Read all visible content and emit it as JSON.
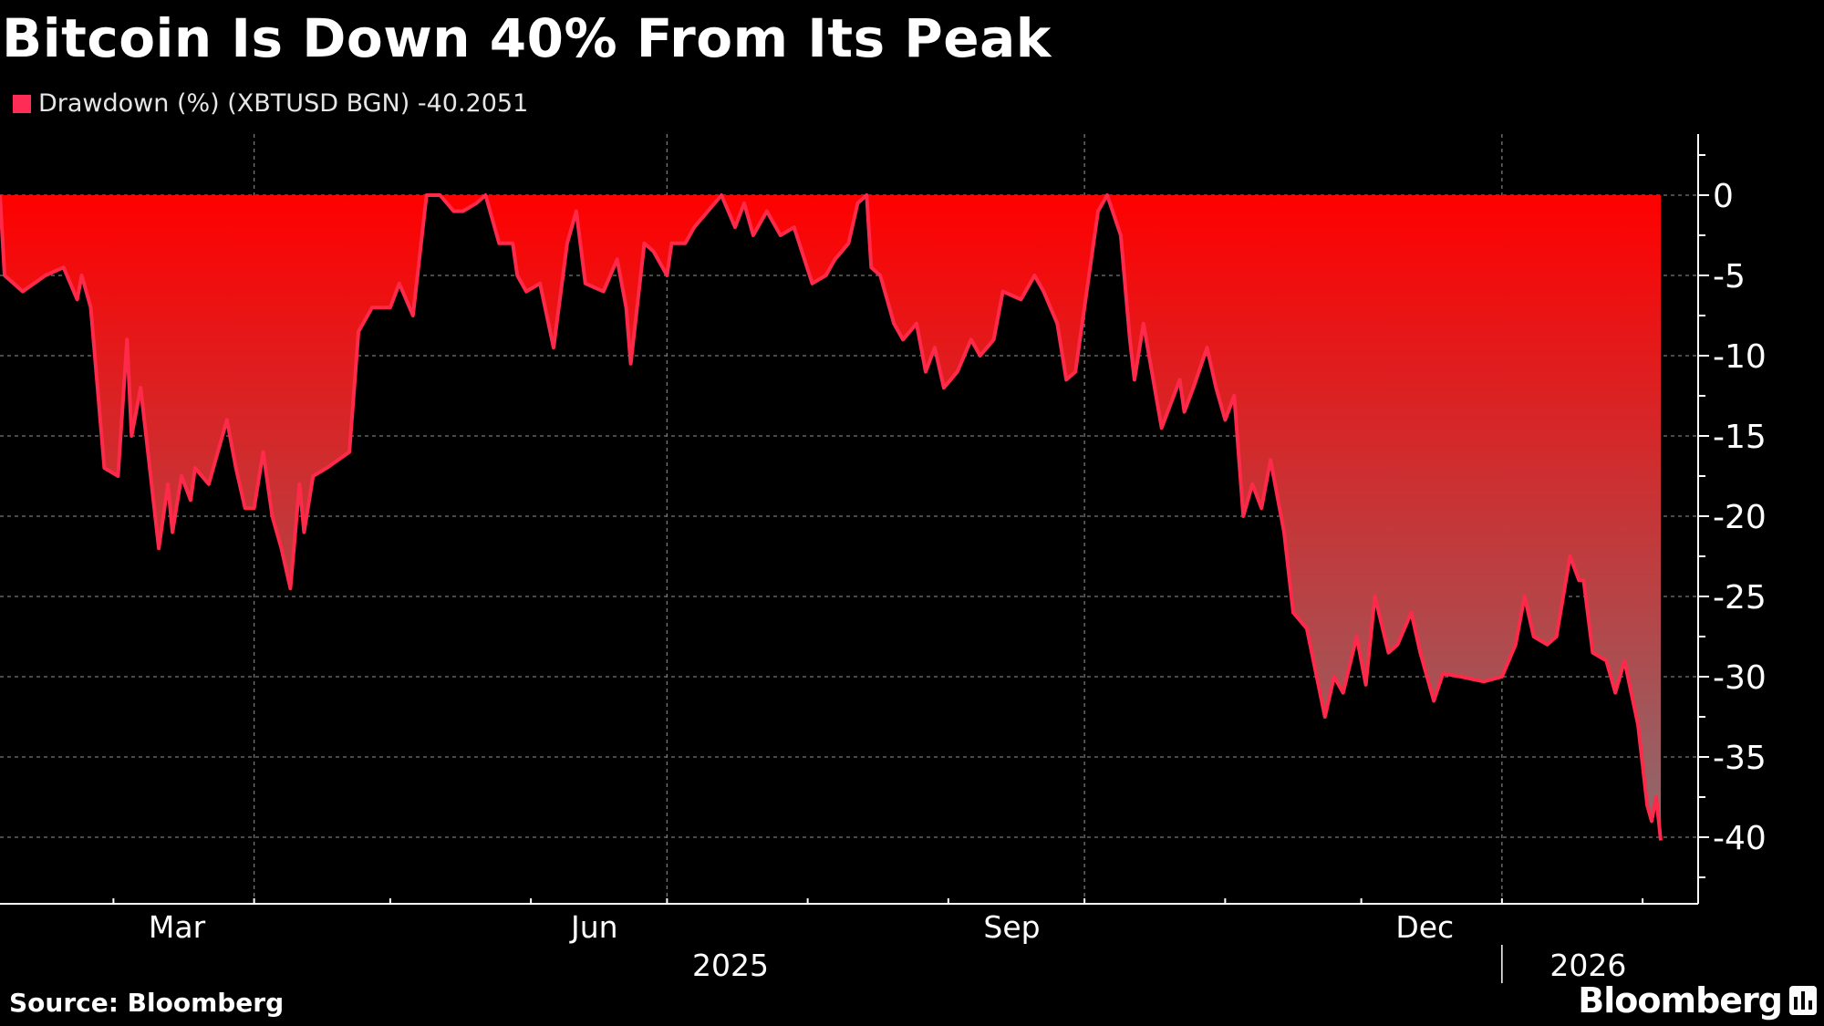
{
  "chart_data": {
    "type": "area",
    "title": "Bitcoin Is Down 40% From Its Peak",
    "legend": {
      "swatch_color": "#ff2d55",
      "label": "Drawdown (%) (XBTUSD BGN) -40.2051",
      "placement": "top-left"
    },
    "series": [
      {
        "name": "Drawdown (%) (XBTUSD BGN)",
        "line_color": "#ff2a4a",
        "fill_top_color": "#ff0000",
        "fill_bottom_color": "#8c6b6f",
        "points": [
          [
            "2025-02-04",
            0
          ],
          [
            "2025-02-05",
            -5
          ],
          [
            "2025-02-09",
            -6
          ],
          [
            "2025-02-14",
            -5
          ],
          [
            "2025-02-18",
            -4.5
          ],
          [
            "2025-02-21",
            -6.5
          ],
          [
            "2025-02-22",
            -5
          ],
          [
            "2025-02-24",
            -7
          ],
          [
            "2025-02-27",
            -17
          ],
          [
            "2025-03-02",
            -17.5
          ],
          [
            "2025-03-04",
            -9
          ],
          [
            "2025-03-05",
            -15
          ],
          [
            "2025-03-07",
            -12
          ],
          [
            "2025-03-09",
            -17
          ],
          [
            "2025-03-11",
            -22
          ],
          [
            "2025-03-13",
            -18
          ],
          [
            "2025-03-14",
            -21
          ],
          [
            "2025-03-16",
            -17.5
          ],
          [
            "2025-03-18",
            -19
          ],
          [
            "2025-03-19",
            -17
          ],
          [
            "2025-03-22",
            -18
          ],
          [
            "2025-03-26",
            -14
          ],
          [
            "2025-03-28",
            -17
          ],
          [
            "2025-03-30",
            -19.5
          ],
          [
            "2025-04-01",
            -19.5
          ],
          [
            "2025-04-03",
            -16
          ],
          [
            "2025-04-05",
            -20
          ],
          [
            "2025-04-07",
            -22
          ],
          [
            "2025-04-09",
            -24.5
          ],
          [
            "2025-04-11",
            -18
          ],
          [
            "2025-04-12",
            -21
          ],
          [
            "2025-04-14",
            -17.5
          ],
          [
            "2025-04-17",
            -17
          ],
          [
            "2025-04-22",
            -16
          ],
          [
            "2025-04-24",
            -8.5
          ],
          [
            "2025-04-27",
            -7
          ],
          [
            "2025-05-01",
            -7
          ],
          [
            "2025-05-03",
            -5.5
          ],
          [
            "2025-05-06",
            -7.5
          ],
          [
            "2025-05-09",
            0
          ],
          [
            "2025-05-12",
            0
          ],
          [
            "2025-05-15",
            -1
          ],
          [
            "2025-05-17",
            -1
          ],
          [
            "2025-05-20",
            -0.5
          ],
          [
            "2025-05-22",
            0
          ],
          [
            "2025-05-25",
            -3
          ],
          [
            "2025-05-28",
            -3
          ],
          [
            "2025-05-29",
            -5
          ],
          [
            "2025-05-31",
            -6
          ],
          [
            "2025-06-03",
            -5.5
          ],
          [
            "2025-06-06",
            -9.5
          ],
          [
            "2025-06-09",
            -3
          ],
          [
            "2025-06-11",
            -1
          ],
          [
            "2025-06-13",
            -5.5
          ],
          [
            "2025-06-17",
            -6
          ],
          [
            "2025-06-20",
            -4
          ],
          [
            "2025-06-22",
            -7
          ],
          [
            "2025-06-23",
            -10.5
          ],
          [
            "2025-06-26",
            -3
          ],
          [
            "2025-06-28",
            -3.5
          ],
          [
            "2025-07-01",
            -5
          ],
          [
            "2025-07-02",
            -3
          ],
          [
            "2025-07-05",
            -3
          ],
          [
            "2025-07-07",
            -2
          ],
          [
            "2025-07-10",
            -1
          ],
          [
            "2025-07-13",
            0
          ],
          [
            "2025-07-16",
            -2
          ],
          [
            "2025-07-18",
            -0.5
          ],
          [
            "2025-07-20",
            -2.5
          ],
          [
            "2025-07-23",
            -1
          ],
          [
            "2025-07-26",
            -2.5
          ],
          [
            "2025-07-29",
            -2
          ],
          [
            "2025-08-02",
            -5.5
          ],
          [
            "2025-08-05",
            -5
          ],
          [
            "2025-08-07",
            -4
          ],
          [
            "2025-08-10",
            -3
          ],
          [
            "2025-08-12",
            -0.5
          ],
          [
            "2025-08-14",
            0
          ],
          [
            "2025-08-15",
            -4.5
          ],
          [
            "2025-08-17",
            -5
          ],
          [
            "2025-08-20",
            -8
          ],
          [
            "2025-08-22",
            -9
          ],
          [
            "2025-08-25",
            -8
          ],
          [
            "2025-08-27",
            -11
          ],
          [
            "2025-08-29",
            -9.5
          ],
          [
            "2025-08-31",
            -12
          ],
          [
            "2025-09-03",
            -11
          ],
          [
            "2025-09-06",
            -9
          ],
          [
            "2025-09-08",
            -10
          ],
          [
            "2025-09-11",
            -9
          ],
          [
            "2025-09-13",
            -6
          ],
          [
            "2025-09-17",
            -6.5
          ],
          [
            "2025-09-20",
            -5
          ],
          [
            "2025-09-22",
            -6
          ],
          [
            "2025-09-25",
            -8
          ],
          [
            "2025-09-27",
            -11.5
          ],
          [
            "2025-09-29",
            -11
          ],
          [
            "2025-10-01",
            -7
          ],
          [
            "2025-10-04",
            -1
          ],
          [
            "2025-10-06",
            0
          ],
          [
            "2025-10-09",
            -2.5
          ],
          [
            "2025-10-11",
            -9
          ],
          [
            "2025-10-12",
            -11.5
          ],
          [
            "2025-10-14",
            -8
          ],
          [
            "2025-10-18",
            -14.5
          ],
          [
            "2025-10-20",
            -13
          ],
          [
            "2025-10-22",
            -11.5
          ],
          [
            "2025-10-23",
            -13.5
          ],
          [
            "2025-10-25",
            -12
          ],
          [
            "2025-10-28",
            -9.5
          ],
          [
            "2025-10-30",
            -12
          ],
          [
            "2025-11-01",
            -14
          ],
          [
            "2025-11-03",
            -12.5
          ],
          [
            "2025-11-05",
            -20
          ],
          [
            "2025-11-07",
            -18
          ],
          [
            "2025-11-09",
            -19.5
          ],
          [
            "2025-11-11",
            -16.5
          ],
          [
            "2025-11-14",
            -21
          ],
          [
            "2025-11-16",
            -26
          ],
          [
            "2025-11-19",
            -27
          ],
          [
            "2025-11-23",
            -32.5
          ],
          [
            "2025-11-25",
            -30
          ],
          [
            "2025-11-27",
            -31
          ],
          [
            "2025-11-30",
            -27.5
          ],
          [
            "2025-12-02",
            -30.5
          ],
          [
            "2025-12-04",
            -25
          ],
          [
            "2025-12-07",
            -28.5
          ],
          [
            "2025-12-09",
            -28
          ],
          [
            "2025-12-12",
            -26
          ],
          [
            "2025-12-14",
            -28.5
          ],
          [
            "2025-12-17",
            -31.5
          ],
          [
            "2025-12-19",
            -29.8
          ],
          [
            "2025-12-23",
            -30
          ],
          [
            "2025-12-28",
            -30.3
          ],
          [
            "2026-01-01",
            -30
          ],
          [
            "2026-01-04",
            -28
          ],
          [
            "2026-01-06",
            -25
          ],
          [
            "2026-01-08",
            -27.5
          ],
          [
            "2026-01-11",
            -28
          ],
          [
            "2026-01-13",
            -27.5
          ],
          [
            "2026-01-16",
            -22.5
          ],
          [
            "2026-01-18",
            -24
          ],
          [
            "2026-01-19",
            -24
          ],
          [
            "2026-01-21",
            -28.5
          ],
          [
            "2026-01-24",
            -29
          ],
          [
            "2026-01-26",
            -31
          ],
          [
            "2026-01-28",
            -29
          ],
          [
            "2026-01-31",
            -33
          ],
          [
            "2026-02-02",
            -38
          ],
          [
            "2026-02-03",
            -39
          ],
          [
            "2026-02-04",
            -37.5
          ],
          [
            "2026-02-05",
            -40.2051
          ]
        ]
      }
    ],
    "x_range": [
      "2025-02-04",
      "2026-02-05"
    ],
    "ylim": [
      -44,
      4
    ],
    "y_ticks": [
      0,
      -5,
      -10,
      -15,
      -20,
      -25,
      -30,
      -35,
      -40
    ],
    "y_tick_labels": [
      "0",
      "-5",
      "-10",
      "-15",
      "-20",
      "-25",
      "-30",
      "-35",
      "-40"
    ],
    "y_axis_position": "right",
    "x_month_labels": [
      {
        "date": "2025-03-15",
        "label": "Mar"
      },
      {
        "date": "2025-06-15",
        "label": "Jun"
      },
      {
        "date": "2025-09-15",
        "label": "Sep"
      },
      {
        "date": "2025-12-15",
        "label": "Dec"
      }
    ],
    "x_year_labels": [
      {
        "date": "2025-07-15",
        "label": "2025"
      },
      {
        "date": "2026-01-20",
        "label": "2026"
      }
    ],
    "grid": true
  },
  "footer": {
    "source": "Source: Bloomberg",
    "logo_text": "Bloomberg"
  }
}
